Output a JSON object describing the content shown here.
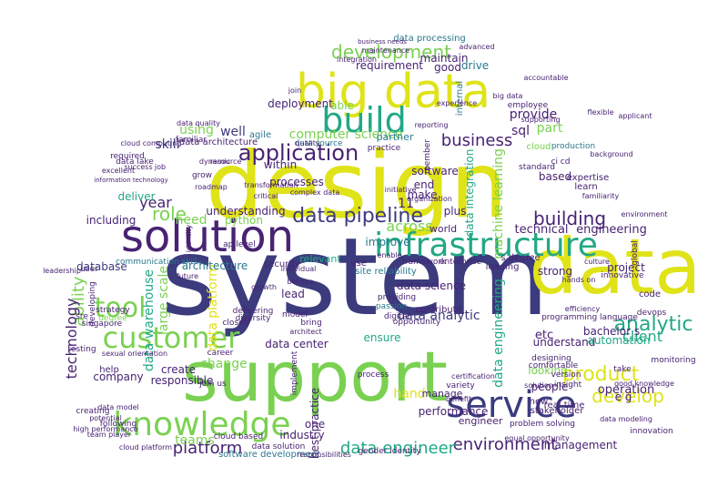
{
  "palette": {
    "navy": "#3b3b7e",
    "purple": "#482373",
    "teal": "#2a788e",
    "green": "#22a884",
    "lime": "#7ad151",
    "yellow": "#dfe318",
    "bg": "#ffffff"
  },
  "words": [
    {
      "id": "system",
      "text": "system",
      "c": "navy"
    },
    {
      "id": "design",
      "text": "design",
      "c": "yellow"
    },
    {
      "id": "support",
      "text": "support",
      "c": "lime"
    },
    {
      "id": "data",
      "text": "data",
      "c": "yellow"
    },
    {
      "id": "solution",
      "text": "solution",
      "c": "purple"
    },
    {
      "id": "big-data",
      "text": "big data",
      "c": "yellow"
    },
    {
      "id": "build",
      "text": "build",
      "c": "green"
    },
    {
      "id": "infrastructure",
      "text": "infrastructure",
      "c": "green"
    },
    {
      "id": "service",
      "text": "service",
      "c": "navy"
    },
    {
      "id": "knowledge",
      "text": "knowledge",
      "c": "lime"
    },
    {
      "id": "customer",
      "text": "customer",
      "c": "lime"
    },
    {
      "id": "tool",
      "text": "tool",
      "c": "lime"
    },
    {
      "id": "application",
      "text": "application",
      "c": "purple"
    },
    {
      "id": "development",
      "text": "development",
      "c": "lime"
    },
    {
      "id": "data-pipeline",
      "text": "data pipeline",
      "c": "navy"
    },
    {
      "id": "analytic",
      "text": "analytic",
      "c": "green"
    },
    {
      "id": "product",
      "text": "product",
      "c": "yellow"
    },
    {
      "id": "develop",
      "text": "develop",
      "c": "yellow"
    },
    {
      "id": "building",
      "text": "building",
      "c": "purple"
    },
    {
      "id": "client",
      "text": "client",
      "c": "green"
    },
    {
      "id": "platform",
      "text": "platform",
      "c": "purple"
    },
    {
      "id": "environment",
      "text": "environment",
      "c": "purple"
    },
    {
      "id": "data-engineer",
      "text": "data engineer",
      "c": "green"
    },
    {
      "id": "business",
      "text": "business",
      "c": "purple"
    },
    {
      "id": "role",
      "text": "role",
      "c": "lime"
    },
    {
      "id": "year",
      "text": "year",
      "c": "purple"
    },
    {
      "id": "ability",
      "text": "ability",
      "c": "lime"
    },
    {
      "id": "technology",
      "text": "technology",
      "c": "purple"
    },
    {
      "id": "across",
      "text": "across",
      "c": "lime"
    },
    {
      "id": "teams",
      "text": "teams",
      "c": "lime"
    },
    {
      "id": "computer-science",
      "text": "computer science",
      "c": "lime"
    },
    {
      "id": "data-warehouse",
      "text": "data warehouse",
      "c": "green"
    },
    {
      "id": "large-scale",
      "text": "large scale",
      "c": "lime"
    },
    {
      "id": "data-platform",
      "text": "data platform",
      "c": "yellow"
    },
    {
      "id": "data-analytic",
      "text": "data analytic",
      "c": "navy"
    },
    {
      "id": "data-engineering",
      "text": "data engineering",
      "c": "green"
    },
    {
      "id": "machine-learning",
      "text": "machine learning",
      "c": "lime"
    },
    {
      "id": "data-integration",
      "text": "data integration",
      "c": "green"
    },
    {
      "id": "technical",
      "text": "technical",
      "c": "purple"
    },
    {
      "id": "engineering",
      "text": "engineering",
      "c": "purple"
    },
    {
      "id": "requirement",
      "text": "requirement",
      "c": "purple"
    },
    {
      "id": "maintain",
      "text": "maintain",
      "c": "purple"
    },
    {
      "id": "drive",
      "text": "drive",
      "c": "teal"
    },
    {
      "id": "good",
      "text": "good",
      "c": "purple"
    },
    {
      "id": "deployment",
      "text": "deployment",
      "c": "purple"
    },
    {
      "id": "able",
      "text": "able",
      "c": "lime"
    },
    {
      "id": "using",
      "text": "using",
      "c": "lime"
    },
    {
      "id": "well",
      "text": "well",
      "c": "navy"
    },
    {
      "id": "skill",
      "text": "skill",
      "c": "navy"
    },
    {
      "id": "sql",
      "text": "sql",
      "c": "purple"
    },
    {
      "id": "provide",
      "text": "provide",
      "c": "purple"
    },
    {
      "id": "part",
      "text": "part",
      "c": "lime"
    },
    {
      "id": "software",
      "text": "software",
      "c": "purple"
    },
    {
      "id": "processes",
      "text": "processes",
      "c": "purple"
    },
    {
      "id": "within",
      "text": "within",
      "c": "purple"
    },
    {
      "id": "end",
      "text": "end",
      "c": "purple"
    },
    {
      "id": "make",
      "text": "make",
      "c": "purple"
    },
    {
      "id": "plus",
      "text": "plus",
      "c": "purple"
    },
    {
      "id": "based",
      "text": "based",
      "c": "purple"
    },
    {
      "id": "including",
      "text": "including",
      "c": "purple"
    },
    {
      "id": "need",
      "text": "need",
      "c": "lime"
    },
    {
      "id": "python",
      "text": "python",
      "c": "lime"
    },
    {
      "id": "understanding",
      "text": "understanding",
      "c": "purple"
    },
    {
      "id": "deliver",
      "text": "deliver",
      "c": "green"
    },
    {
      "id": "database",
      "text": "database",
      "c": "navy"
    },
    {
      "id": "architecture",
      "text": "architecture",
      "c": "teal"
    },
    {
      "id": "improve",
      "text": "improve",
      "c": "teal"
    },
    {
      "id": "world",
      "text": "world",
      "c": "purple"
    },
    {
      "id": "strong",
      "text": "strong",
      "c": "purple"
    },
    {
      "id": "project",
      "text": "project",
      "c": "purple"
    },
    {
      "id": "lead",
      "text": "lead",
      "c": "purple"
    },
    {
      "id": "data-science",
      "text": "data science",
      "c": "purple"
    },
    {
      "id": "ensure",
      "text": "ensure",
      "c": "green"
    },
    {
      "id": "etc",
      "text": "etc",
      "c": "purple"
    },
    {
      "id": "understand",
      "text": "understand",
      "c": "purple"
    },
    {
      "id": "automation",
      "text": "automation",
      "c": "green"
    },
    {
      "id": "responsible",
      "text": "responsible",
      "c": "purple"
    },
    {
      "id": "create",
      "text": "create",
      "c": "purple"
    },
    {
      "id": "company",
      "text": "company",
      "c": "purple"
    },
    {
      "id": "data-center",
      "text": "data center",
      "c": "purple"
    },
    {
      "id": "change",
      "text": "change",
      "c": "lime"
    },
    {
      "id": "looking",
      "text": "looking",
      "c": "lime"
    },
    {
      "id": "people",
      "text": "people",
      "c": "purple"
    },
    {
      "id": "hand",
      "text": "hand",
      "c": "yellow"
    },
    {
      "id": "best-practice",
      "text": "best practice",
      "c": "purple"
    },
    {
      "id": "one",
      "text": "one",
      "c": "purple"
    },
    {
      "id": "manage",
      "text": "manage",
      "c": "purple"
    },
    {
      "id": "performance",
      "text": "performance",
      "c": "purple"
    },
    {
      "id": "engineer",
      "text": "engineer",
      "c": "purple"
    },
    {
      "id": "operation",
      "text": "operation",
      "c": "purple"
    },
    {
      "id": "management",
      "text": "management",
      "c": "purple"
    },
    {
      "id": "e-g",
      "text": "e g",
      "c": "purple"
    },
    {
      "id": "industry",
      "text": "industry",
      "c": "purple"
    },
    {
      "id": "cloud",
      "text": "cloud",
      "c": "lime"
    },
    {
      "id": "software-development",
      "text": "software development",
      "c": "teal"
    },
    {
      "id": "data-processing",
      "text": "data processing",
      "c": "teal"
    },
    {
      "id": "bachelor-s",
      "text": "bachelor s",
      "c": "purple"
    },
    {
      "id": "real-time",
      "text": "real time",
      "c": "purple"
    },
    {
      "id": "s-degree",
      "text": "s degree",
      "c": "purple"
    },
    {
      "id": "enterprise",
      "text": "enterprise",
      "c": "purple"
    },
    {
      "id": "framework",
      "text": "framework",
      "c": "purple"
    },
    {
      "id": "implement",
      "text": "implement",
      "c": "purple"
    },
    {
      "id": "site-reliability",
      "text": "site reliability",
      "c": "teal"
    },
    {
      "id": "leading",
      "text": "leading",
      "c": "purple"
    },
    {
      "id": "programming-language",
      "text": "programming language",
      "c": "purple"
    },
    {
      "id": "security",
      "text": "security",
      "c": "purple"
    },
    {
      "id": "relevant",
      "text": "relevant",
      "c": "green"
    },
    {
      "id": "use",
      "text": "use",
      "c": "purple"
    },
    {
      "id": "contribute",
      "text": "contribute",
      "c": "purple"
    },
    {
      "id": "11",
      "text": "11",
      "c": "purple"
    },
    {
      "id": "singapore",
      "text": "singapore",
      "c": "purple"
    },
    {
      "id": "help",
      "text": "help",
      "c": "purple"
    },
    {
      "id": "communication-skill",
      "text": "communication skill",
      "c": "teal"
    },
    {
      "id": "developing",
      "text": "developing",
      "c": "purple"
    },
    {
      "id": "closely",
      "text": "closely",
      "c": "purple"
    },
    {
      "id": "data-solution",
      "text": "data solution",
      "c": "purple"
    },
    {
      "id": "agile",
      "text": "agile",
      "c": "teal"
    },
    {
      "id": "internal",
      "text": "internal",
      "c": "teal"
    },
    {
      "id": "data-architecture",
      "text": "data architecture",
      "c": "purple"
    },
    {
      "id": "data-lake",
      "text": "data lake",
      "c": "purple"
    },
    {
      "id": "data-source",
      "text": "data source",
      "c": "teal"
    },
    {
      "id": "partner",
      "text": "partner",
      "c": "teal"
    },
    {
      "id": "standard",
      "text": "standard",
      "c": "purple"
    },
    {
      "id": "learn",
      "text": "learn",
      "c": "purple"
    },
    {
      "id": "expertise",
      "text": "expertise",
      "c": "purple"
    },
    {
      "id": "production",
      "text": "production",
      "c": "teal"
    },
    {
      "id": "passion",
      "text": "passion",
      "c": "teal"
    },
    {
      "id": "providing",
      "text": "providing",
      "c": "purple"
    },
    {
      "id": "digital",
      "text": "digital",
      "c": "purple"
    },
    {
      "id": "opportunity",
      "text": "opportunity",
      "c": "purple"
    },
    {
      "id": "required",
      "text": "required",
      "c": "purple"
    },
    {
      "id": "sre",
      "text": "sre",
      "c": "purple"
    },
    {
      "id": "strategy",
      "text": "strategy",
      "c": "purple"
    },
    {
      "id": "degree",
      "text": "degree",
      "c": "lime"
    },
    {
      "id": "level",
      "text": "level",
      "c": "purple"
    },
    {
      "id": "api",
      "text": "api",
      "c": "purple"
    },
    {
      "id": "code",
      "text": "code",
      "c": "purple"
    },
    {
      "id": "global",
      "text": "global",
      "c": "purple"
    },
    {
      "id": "innovative",
      "text": "innovative",
      "c": "purple"
    },
    {
      "id": "take",
      "text": "take",
      "c": "purple"
    },
    {
      "id": "monitoring",
      "text": "monitoring",
      "c": "purple"
    },
    {
      "id": "innovation",
      "text": "innovation",
      "c": "purple"
    },
    {
      "id": "new",
      "text": "new",
      "c": "purple"
    },
    {
      "id": "stakeholder",
      "text": "stakeholder",
      "c": "purple"
    },
    {
      "id": "designing",
      "text": "designing",
      "c": "purple"
    },
    {
      "id": "insight",
      "text": "insight",
      "c": "purple"
    },
    {
      "id": "version",
      "text": "version",
      "c": "purple"
    },
    {
      "id": "comfortable",
      "text": "comfortable",
      "c": "purple"
    },
    {
      "id": "problem-solving",
      "text": "problem solving",
      "c": "purple"
    },
    {
      "id": "variety",
      "text": "variety",
      "c": "purple"
    },
    {
      "id": "process",
      "text": "process",
      "c": "purple"
    },
    {
      "id": "gender-identity",
      "text": "gender identity",
      "c": "purple"
    },
    {
      "id": "bring",
      "text": "bring",
      "c": "purple"
    },
    {
      "id": "model",
      "text": "model",
      "c": "purple"
    },
    {
      "id": "cloud-based",
      "text": "cloud based",
      "c": "purple"
    },
    {
      "id": "join-us",
      "text": "join us",
      "c": "purple"
    },
    {
      "id": "career",
      "text": "career",
      "c": "purple"
    },
    {
      "id": "testing",
      "text": "testing",
      "c": "purple"
    },
    {
      "id": "creating",
      "text": "creating",
      "c": "purple"
    },
    {
      "id": "following",
      "text": "following",
      "c": "purple"
    },
    {
      "id": "potential",
      "text": "potential",
      "c": "purple"
    },
    {
      "id": "sexual-orientation",
      "text": "sexual orientation",
      "c": "purple"
    },
    {
      "id": "delivering",
      "text": "delivering",
      "c": "purple"
    },
    {
      "id": "diversity",
      "text": "diversity",
      "c": "purple"
    },
    {
      "id": "individual",
      "text": "individual",
      "c": "purple"
    },
    {
      "id": "believe",
      "text": "believe",
      "c": "purple"
    },
    {
      "id": "identity",
      "text": "identity",
      "c": "purple"
    },
    {
      "id": "familiar",
      "text": "familiar",
      "c": "purple"
    },
    {
      "id": "success",
      "text": "success",
      "c": "purple"
    },
    {
      "id": "job",
      "text": "job",
      "c": "purple"
    },
    {
      "id": "practice",
      "text": "practice",
      "c": "purple"
    },
    {
      "id": "organization",
      "text": "organization",
      "c": "purple"
    },
    {
      "id": "member",
      "text": "member",
      "c": "purple"
    },
    {
      "id": "quality",
      "text": "quality",
      "c": "purple"
    },
    {
      "id": "cloud-computing",
      "text": "cloud computing",
      "c": "purple"
    },
    {
      "id": "data-quality",
      "text": "data quality",
      "c": "purple"
    },
    {
      "id": "employee",
      "text": "employee",
      "c": "purple"
    },
    {
      "id": "supporting",
      "text": "supporting",
      "c": "purple"
    },
    {
      "id": "environment-small",
      "text": "environment",
      "c": "purple"
    },
    {
      "id": "user",
      "text": "user",
      "c": "purple"
    },
    {
      "id": "leadership",
      "text": "leadership",
      "c": "purple"
    },
    {
      "id": "advanced",
      "text": "advanced",
      "c": "purple"
    },
    {
      "id": "join",
      "text": "join",
      "c": "purple"
    },
    {
      "id": "business-needs",
      "text": "business needs",
      "c": "purple"
    },
    {
      "id": "maintenance",
      "text": "maintenance",
      "c": "purple"
    },
    {
      "id": "integration",
      "text": "integration",
      "c": "purple"
    },
    {
      "id": "benefit",
      "text": "benefit",
      "c": "purple"
    },
    {
      "id": "certification",
      "text": "certification",
      "c": "purple"
    },
    {
      "id": "solution-small",
      "text": "solution",
      "c": "purple"
    },
    {
      "id": "architect",
      "text": "architect",
      "c": "purple"
    },
    {
      "id": "enable",
      "text": "enable",
      "c": "purple"
    },
    {
      "id": "initiative",
      "text": "initiative",
      "c": "purple"
    },
    {
      "id": "dynamic",
      "text": "dynamic",
      "c": "purple"
    },
    {
      "id": "grow",
      "text": "grow",
      "c": "purple"
    },
    {
      "id": "critical",
      "text": "critical",
      "c": "purple"
    },
    {
      "id": "culture",
      "text": "culture",
      "c": "purple"
    },
    {
      "id": "applicant",
      "text": "applicant",
      "c": "purple"
    },
    {
      "id": "devops",
      "text": "devops",
      "c": "purple"
    },
    {
      "id": "good-knowledge",
      "text": "good knowledge",
      "c": "purple"
    },
    {
      "id": "ci-cd",
      "text": "ci cd",
      "c": "purple"
    },
    {
      "id": "familiarity",
      "text": "familiarity",
      "c": "purple"
    },
    {
      "id": "responsibilities",
      "text": "responsibilities",
      "c": "purple"
    },
    {
      "id": "data-model",
      "text": "data model",
      "c": "purple"
    },
    {
      "id": "team-player",
      "text": "team player",
      "c": "purple"
    },
    {
      "id": "information-technology",
      "text": "information technology",
      "c": "purple"
    },
    {
      "id": "high-performance",
      "text": "high performance",
      "c": "purple"
    },
    {
      "id": "cloud-platform",
      "text": "cloud platform",
      "c": "purple"
    },
    {
      "id": "equal-opportunity",
      "text": "equal opportunity",
      "c": "purple"
    },
    {
      "id": "experience",
      "text": "experience",
      "c": "purple"
    },
    {
      "id": "background",
      "text": "background",
      "c": "purple"
    },
    {
      "id": "flexible",
      "text": "flexible",
      "c": "purple"
    },
    {
      "id": "reporting",
      "text": "reporting",
      "c": "purple"
    },
    {
      "id": "complex-data",
      "text": "complex data",
      "c": "purple"
    },
    {
      "id": "hands-on",
      "text": "hands on",
      "c": "purple"
    },
    {
      "id": "roadmap",
      "text": "roadmap",
      "c": "purple"
    },
    {
      "id": "data-model-2",
      "text": "data modeling",
      "c": "purple"
    },
    {
      "id": "excellent",
      "text": "excellent",
      "c": "purple"
    },
    {
      "id": "accountable",
      "text": "accountable",
      "c": "purple"
    },
    {
      "id": "big-data-small",
      "text": "big data",
      "c": "purple"
    },
    {
      "id": "efficiency",
      "text": "efficiency",
      "c": "purple"
    },
    {
      "id": "future",
      "text": "future",
      "c": "purple"
    },
    {
      "id": "resource",
      "text": "resource",
      "c": "purple"
    },
    {
      "id": "growth",
      "text": "growth",
      "c": "purple"
    },
    {
      "id": "transformation",
      "text": "transformation",
      "c": "purple"
    }
  ]
}
